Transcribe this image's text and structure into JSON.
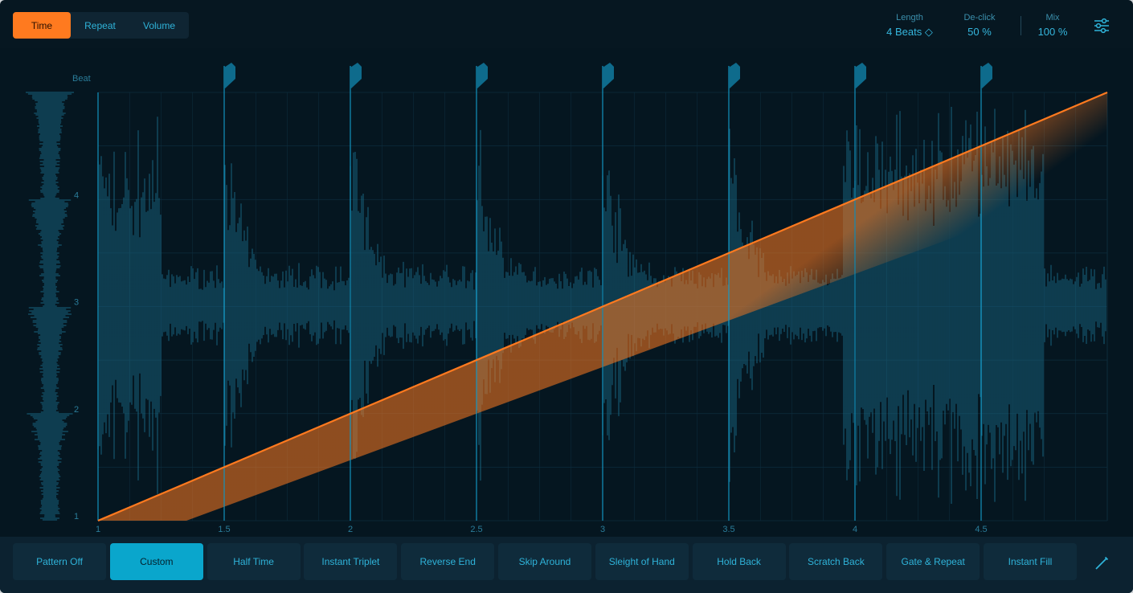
{
  "modes": [
    {
      "label": "Time",
      "active": true
    },
    {
      "label": "Repeat",
      "active": false
    },
    {
      "label": "Volume",
      "active": false
    }
  ],
  "params": {
    "length": {
      "label": "Length",
      "value": "4 Beats ◇"
    },
    "declick": {
      "label": "De-click",
      "value": "50 %"
    },
    "mix": {
      "label": "Mix",
      "value": "100 %"
    }
  },
  "graph": {
    "y_axis_label": "Beat",
    "y_ticks": [
      "1",
      "2",
      "3",
      "4"
    ],
    "x_ticks": [
      "1",
      "1.5",
      "2",
      "2.5",
      "3",
      "3.5",
      "4",
      "4.5"
    ],
    "slice_markers": [
      1.5,
      2,
      2.5,
      3,
      3.5,
      4,
      4.5
    ],
    "curve": {
      "from": [
        1,
        1
      ],
      "to": [
        5,
        5
      ]
    },
    "colors": {
      "curve": "#ff7a1f",
      "waveform": "#1a6b88",
      "marker": "#1393be"
    }
  },
  "presets": [
    {
      "label": "Pattern Off",
      "active": false
    },
    {
      "label": "Custom",
      "active": true
    },
    {
      "label": "Half Time",
      "active": false
    },
    {
      "label": "Instant Triplet",
      "active": false
    },
    {
      "label": "Reverse End",
      "active": false
    },
    {
      "label": "Skip Around",
      "active": false
    },
    {
      "label": "Sleight of Hand",
      "active": false
    },
    {
      "label": "Hold Back",
      "active": false
    },
    {
      "label": "Scratch Back",
      "active": false
    },
    {
      "label": "Gate & Repeat",
      "active": false
    },
    {
      "label": "Instant Fill",
      "active": false
    }
  ],
  "icons": {
    "settings": "sliders-icon",
    "edit": "pencil-icon"
  }
}
